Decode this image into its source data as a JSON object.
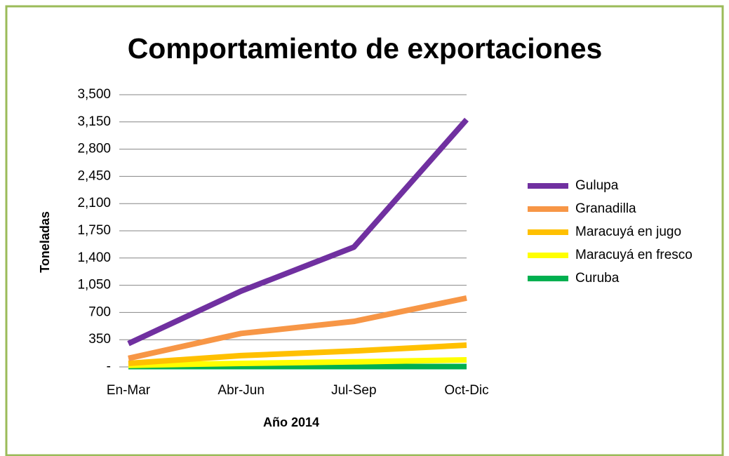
{
  "chart_data": {
    "type": "line",
    "title": "Comportamiento de exportaciones",
    "x_label": "Año 2014",
    "y_label": "Toneladas",
    "categories": [
      "En-Mar",
      "Abr-Jun",
      "Jul-Sep",
      "Oct-Dic"
    ],
    "series": [
      {
        "name": "Gulupa",
        "color": "#7030a0",
        "values": [
          300,
          975,
          1540,
          3180
        ]
      },
      {
        "name": "Granadilla",
        "color": "#f79646",
        "values": [
          110,
          430,
          585,
          885
        ]
      },
      {
        "name": "Maracuyá en jugo",
        "color": "#ffc000",
        "values": [
          45,
          145,
          205,
          280
        ]
      },
      {
        "name": "Maracuyá en fresco",
        "color": "#ffff00",
        "values": [
          20,
          45,
          65,
          90
        ]
      },
      {
        "name": "Curuba",
        "color": "#00b050",
        "values": [
          5,
          5,
          5,
          5
        ]
      }
    ],
    "ylim": [
      0,
      3500
    ],
    "yticks": [
      {
        "value": 0,
        "label": "-"
      },
      350,
      700,
      {
        "value": 1050,
        "label": "1,050"
      },
      {
        "value": 1400,
        "label": "1,400"
      },
      {
        "value": 1750,
        "label": "1,750"
      },
      {
        "value": 2100,
        "label": "2,100"
      },
      {
        "value": 2450,
        "label": "2,450"
      },
      {
        "value": 2800,
        "label": "2,800"
      },
      {
        "value": 3150,
        "label": "3,150"
      },
      {
        "value": 3500,
        "label": "3,500"
      }
    ],
    "grid": true,
    "legend": "right"
  }
}
